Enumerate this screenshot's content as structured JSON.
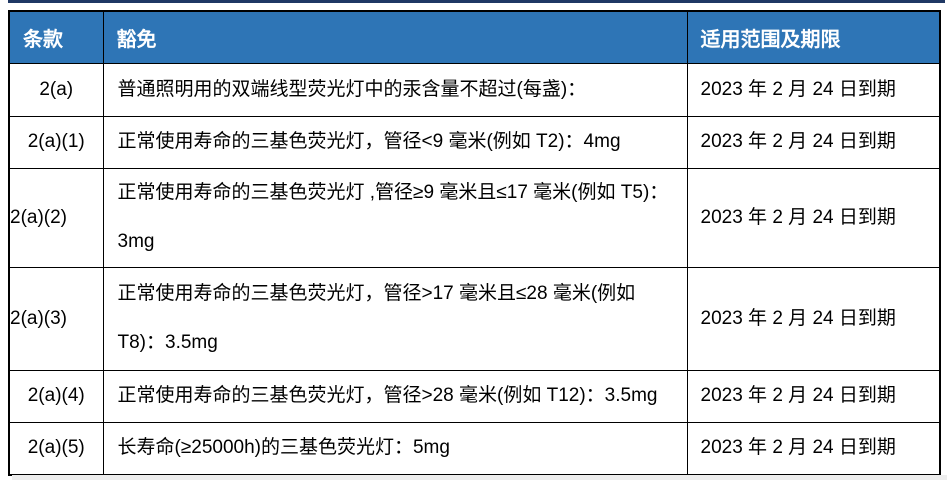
{
  "page": {
    "accent_colors": {
      "top_line": "#1F3864",
      "header_background": "#2E75B6",
      "header_text": "#FFFFFF",
      "table_border": "#000000"
    }
  },
  "table": {
    "columns": [
      "条款",
      "豁免",
      "适用范围及期限"
    ],
    "rows": [
      {
        "clause": "2(a)",
        "exemption_lines": [
          "普通照明用的双端线型荧光灯中的汞含量不超过(每盏)："
        ],
        "scope": "2023 年 2 月 24 日到期"
      },
      {
        "clause": "2(a)(1)",
        "exemption_lines": [
          "正常使用寿命的三基色荧光灯，管径<9 毫米(例如 T2)：4mg"
        ],
        "scope": "2023 年 2 月 24 日到期"
      },
      {
        "clause": "2(a)(2)",
        "exemption_lines": [
          "正常使用寿命的三基色荧光灯 ,管径≥9 毫米且≤17 毫米(例如 T5)：",
          "3mg"
        ],
        "scope": "2023 年 2 月 24 日到期"
      },
      {
        "clause": "2(a)(3)",
        "exemption_lines": [
          "正常使用寿命的三基色荧光灯，管径>17 毫米且≤28 毫米(例如",
          "T8)：3.5mg"
        ],
        "scope": "2023 年 2 月 24 日到期"
      },
      {
        "clause": "2(a)(4)",
        "exemption_lines": [
          "正常使用寿命的三基色荧光灯，管径>28 毫米(例如 T12)：3.5mg"
        ],
        "scope": "2023 年 2 月 24 日到期"
      },
      {
        "clause": "2(a)(5)",
        "exemption_lines": [
          "长寿命(≥25000h)的三基色荧光灯：5mg"
        ],
        "scope": "2023 年 2 月 24 日到期"
      }
    ]
  }
}
